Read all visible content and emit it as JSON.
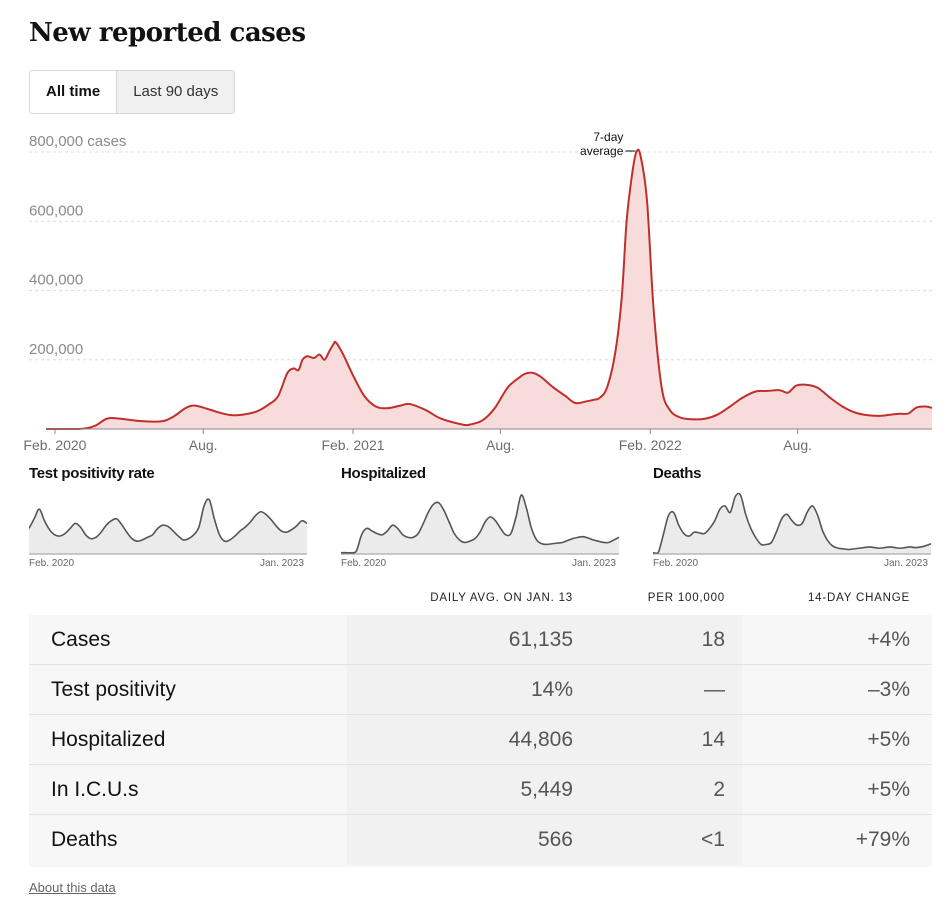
{
  "page": {
    "title": "New reported cases",
    "tabs": [
      {
        "label": "All time",
        "active": true
      },
      {
        "label": "Last 90 days",
        "active": false
      }
    ],
    "about_link": "About this data"
  },
  "colors": {
    "line": "#c0302b",
    "fill": "#f8dcdc",
    "mini_line": "#555555",
    "mini_fill": "#ebebeb"
  },
  "chart_data": [
    {
      "type": "area",
      "title": "",
      "y_unit_label": "cases",
      "y_ticks": [
        {
          "value": 200000,
          "label": "200,000"
        },
        {
          "value": 400000,
          "label": "400,000"
        },
        {
          "value": 600000,
          "label": "600,000"
        },
        {
          "value": 800000,
          "label": "800,000"
        }
      ],
      "ylim": [
        0,
        800000
      ],
      "x_ticks": [
        {
          "date": "2020-02-01",
          "label": "Feb. 2020"
        },
        {
          "date": "2020-08-01",
          "label": "Aug."
        },
        {
          "date": "2021-02-01",
          "label": "Feb. 2021"
        },
        {
          "date": "2021-08-01",
          "label": "Aug."
        },
        {
          "date": "2022-02-01",
          "label": "Feb. 2022"
        },
        {
          "date": "2022-08-01",
          "label": "Aug."
        }
      ],
      "xlim": [
        "2020-01-21",
        "2023-01-13"
      ],
      "series": [
        {
          "name": "7-day average",
          "x": [
            "2020-01-21",
            "2020-03-01",
            "2020-03-20",
            "2020-04-05",
            "2020-04-20",
            "2020-05-15",
            "2020-06-10",
            "2020-06-25",
            "2020-07-10",
            "2020-07-20",
            "2020-08-01",
            "2020-08-20",
            "2020-09-05",
            "2020-09-20",
            "2020-10-05",
            "2020-10-20",
            "2020-11-01",
            "2020-11-12",
            "2020-11-20",
            "2020-11-26",
            "2020-12-01",
            "2020-12-07",
            "2020-12-15",
            "2020-12-22",
            "2020-12-28",
            "2021-01-03",
            "2021-01-08",
            "2021-01-11",
            "2021-01-20",
            "2021-02-01",
            "2021-02-15",
            "2021-03-01",
            "2021-03-15",
            "2021-04-01",
            "2021-04-12",
            "2021-05-01",
            "2021-05-20",
            "2021-06-15",
            "2021-06-25",
            "2021-07-10",
            "2021-07-25",
            "2021-08-10",
            "2021-08-25",
            "2021-09-01",
            "2021-09-10",
            "2021-09-20",
            "2021-10-05",
            "2021-10-20",
            "2021-11-01",
            "2021-11-15",
            "2021-11-25",
            "2021-12-01",
            "2021-12-10",
            "2021-12-20",
            "2021-12-28",
            "2022-01-03",
            "2022-01-10",
            "2022-01-15",
            "2022-01-20",
            "2022-01-28",
            "2022-02-05",
            "2022-02-15",
            "2022-02-25",
            "2022-03-10",
            "2022-03-25",
            "2022-04-10",
            "2022-04-25",
            "2022-05-10",
            "2022-05-25",
            "2022-06-10",
            "2022-06-25",
            "2022-07-10",
            "2022-07-20",
            "2022-07-30",
            "2022-08-10",
            "2022-08-25",
            "2022-09-10",
            "2022-09-25",
            "2022-10-10",
            "2022-10-25",
            "2022-11-10",
            "2022-11-25",
            "2022-12-05",
            "2022-12-15",
            "2022-12-25",
            "2023-01-05",
            "2023-01-13"
          ],
          "values": [
            0,
            100,
            8000,
            30000,
            30000,
            23000,
            22000,
            35000,
            60000,
            68000,
            62000,
            48000,
            40000,
            42000,
            50000,
            70000,
            95000,
            160000,
            175000,
            170000,
            200000,
            210000,
            205000,
            215000,
            200000,
            225000,
            245000,
            250000,
            215000,
            155000,
            95000,
            65000,
            60000,
            68000,
            72000,
            55000,
            30000,
            13000,
            13000,
            25000,
            60000,
            120000,
            150000,
            160000,
            162000,
            150000,
            120000,
            95000,
            75000,
            80000,
            85000,
            90000,
            120000,
            220000,
            380000,
            600000,
            740000,
            800000,
            790000,
            660000,
            350000,
            120000,
            55000,
            33000,
            28000,
            30000,
            42000,
            65000,
            90000,
            108000,
            110000,
            112000,
            105000,
            125000,
            128000,
            120000,
            90000,
            65000,
            48000,
            40000,
            38000,
            42000,
            44000,
            45000,
            62000,
            65000,
            61000
          ]
        }
      ],
      "annotation": {
        "text_line1": "7-day",
        "text_line2": "average"
      }
    },
    {
      "type": "area",
      "title": "Test positivity rate",
      "x_start_label": "Feb. 2020",
      "x_end_label": "Jan. 2023",
      "values": [
        0.4,
        0.55,
        0.7,
        0.52,
        0.38,
        0.3,
        0.28,
        0.32,
        0.4,
        0.48,
        0.42,
        0.3,
        0.24,
        0.26,
        0.34,
        0.45,
        0.52,
        0.55,
        0.46,
        0.34,
        0.24,
        0.2,
        0.22,
        0.26,
        0.3,
        0.4,
        0.45,
        0.43,
        0.36,
        0.28,
        0.22,
        0.24,
        0.3,
        0.42,
        0.75,
        0.85,
        0.55,
        0.3,
        0.2,
        0.22,
        0.28,
        0.36,
        0.42,
        0.5,
        0.6,
        0.66,
        0.62,
        0.54,
        0.44,
        0.36,
        0.34,
        0.38,
        0.44,
        0.52,
        0.48
      ]
    },
    {
      "type": "area",
      "title": "Hospitalized",
      "x_start_label": "Feb. 2020",
      "x_end_label": "Jan. 2023",
      "values": [
        0.02,
        0.02,
        0.02,
        0.05,
        0.3,
        0.4,
        0.36,
        0.32,
        0.3,
        0.36,
        0.45,
        0.4,
        0.3,
        0.26,
        0.26,
        0.32,
        0.48,
        0.66,
        0.78,
        0.8,
        0.68,
        0.5,
        0.32,
        0.22,
        0.18,
        0.2,
        0.24,
        0.34,
        0.5,
        0.58,
        0.52,
        0.4,
        0.3,
        0.32,
        0.58,
        0.92,
        0.72,
        0.4,
        0.22,
        0.16,
        0.15,
        0.16,
        0.17,
        0.18,
        0.21,
        0.24,
        0.26,
        0.27,
        0.25,
        0.22,
        0.2,
        0.18,
        0.18,
        0.22,
        0.26
      ]
    },
    {
      "type": "area",
      "title": "Deaths",
      "x_start_label": "Feb. 2020",
      "x_end_label": "Jan. 2023",
      "values": [
        0.02,
        0.02,
        0.3,
        0.6,
        0.65,
        0.45,
        0.32,
        0.28,
        0.34,
        0.33,
        0.32,
        0.4,
        0.52,
        0.7,
        0.75,
        0.65,
        0.9,
        0.92,
        0.62,
        0.4,
        0.25,
        0.15,
        0.15,
        0.18,
        0.35,
        0.55,
        0.62,
        0.52,
        0.45,
        0.48,
        0.66,
        0.75,
        0.6,
        0.35,
        0.2,
        0.12,
        0.09,
        0.08,
        0.07,
        0.08,
        0.09,
        0.1,
        0.11,
        0.1,
        0.09,
        0.1,
        0.11,
        0.1,
        0.09,
        0.1,
        0.11,
        0.1,
        0.11,
        0.13,
        0.16
      ]
    }
  ],
  "table": {
    "headers": {
      "daily_avg": "DAILY AVG. ON JAN. 13",
      "per_100k": "PER 100,000",
      "change": "14-DAY CHANGE"
    },
    "rows": [
      {
        "label": "Cases",
        "daily_avg": "61,135",
        "per_100k": "18",
        "change": "+4%"
      },
      {
        "label": "Test positivity",
        "daily_avg": "14%",
        "per_100k": "—",
        "change": "–3%"
      },
      {
        "label": "Hospitalized",
        "daily_avg": "44,806",
        "per_100k": "14",
        "change": "+5%"
      },
      {
        "label": "In I.C.U.s",
        "daily_avg": "5,449",
        "per_100k": "2",
        "change": "+5%"
      },
      {
        "label": "Deaths",
        "daily_avg": "566",
        "per_100k": "<1",
        "change": "+79%"
      }
    ]
  }
}
